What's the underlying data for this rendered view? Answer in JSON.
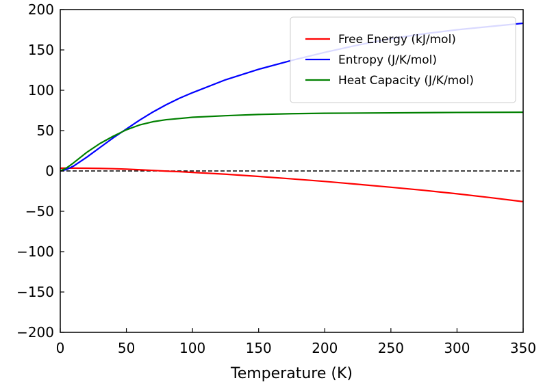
{
  "chart_data": {
    "type": "line",
    "title": "",
    "xlabel": "Temperature (K)",
    "ylabel": "",
    "xlim": [
      0,
      350
    ],
    "ylim": [
      -200,
      200
    ],
    "x_ticks": [
      0,
      50,
      100,
      150,
      200,
      250,
      300,
      350
    ],
    "y_ticks": [
      -200,
      -150,
      -100,
      -50,
      0,
      50,
      100,
      150,
      200
    ],
    "x_tick_labels": [
      "0",
      "50",
      "100",
      "150",
      "200",
      "250",
      "300",
      "350"
    ],
    "y_tick_labels": [
      "−200",
      "−150",
      "−100",
      "−50",
      "0",
      "50",
      "100",
      "150",
      "200"
    ],
    "grid": false,
    "legend_position": "top-right",
    "reference_line": {
      "y": 0,
      "style": "dashed",
      "color": "#000000"
    },
    "series": [
      {
        "name": "Free Energy (kJ/mol)",
        "color": "#ff0000",
        "x": [
          0,
          10,
          20,
          30,
          40,
          50,
          60,
          70,
          80,
          90,
          100,
          125,
          150,
          175,
          200,
          225,
          250,
          275,
          300,
          325,
          350
        ],
        "y": [
          3.5,
          3.5,
          3.4,
          3.2,
          2.8,
          2.2,
          1.5,
          0.7,
          -0.2,
          -0.9,
          -1.8,
          -4.0,
          -6.8,
          -9.8,
          -13.0,
          -16.5,
          -20.2,
          -24.0,
          -28.3,
          -33.0,
          -38.0
        ]
      },
      {
        "name": "Entropy (J/K/mol)",
        "color": "#0000ff",
        "x": [
          0,
          5,
          10,
          20,
          30,
          40,
          50,
          60,
          70,
          80,
          90,
          100,
          125,
          150,
          175,
          200,
          225,
          250,
          275,
          300,
          325,
          350
        ],
        "y": [
          0,
          2,
          6,
          17,
          29,
          41,
          52,
          63,
          73,
          82,
          90,
          97,
          113,
          126,
          137,
          147,
          156,
          164,
          170,
          175,
          179,
          183
        ]
      },
      {
        "name": "Heat Capacity (J/K/mol)",
        "color": "#008000",
        "x": [
          0,
          5,
          10,
          20,
          30,
          40,
          50,
          60,
          70,
          80,
          90,
          100,
          125,
          150,
          175,
          200,
          250,
          300,
          350
        ],
        "y": [
          0,
          4,
          10,
          23,
          34,
          43,
          51,
          57,
          61,
          63.5,
          65,
          66.5,
          68.5,
          70,
          71,
          71.5,
          72,
          72.5,
          72.8
        ]
      }
    ]
  }
}
